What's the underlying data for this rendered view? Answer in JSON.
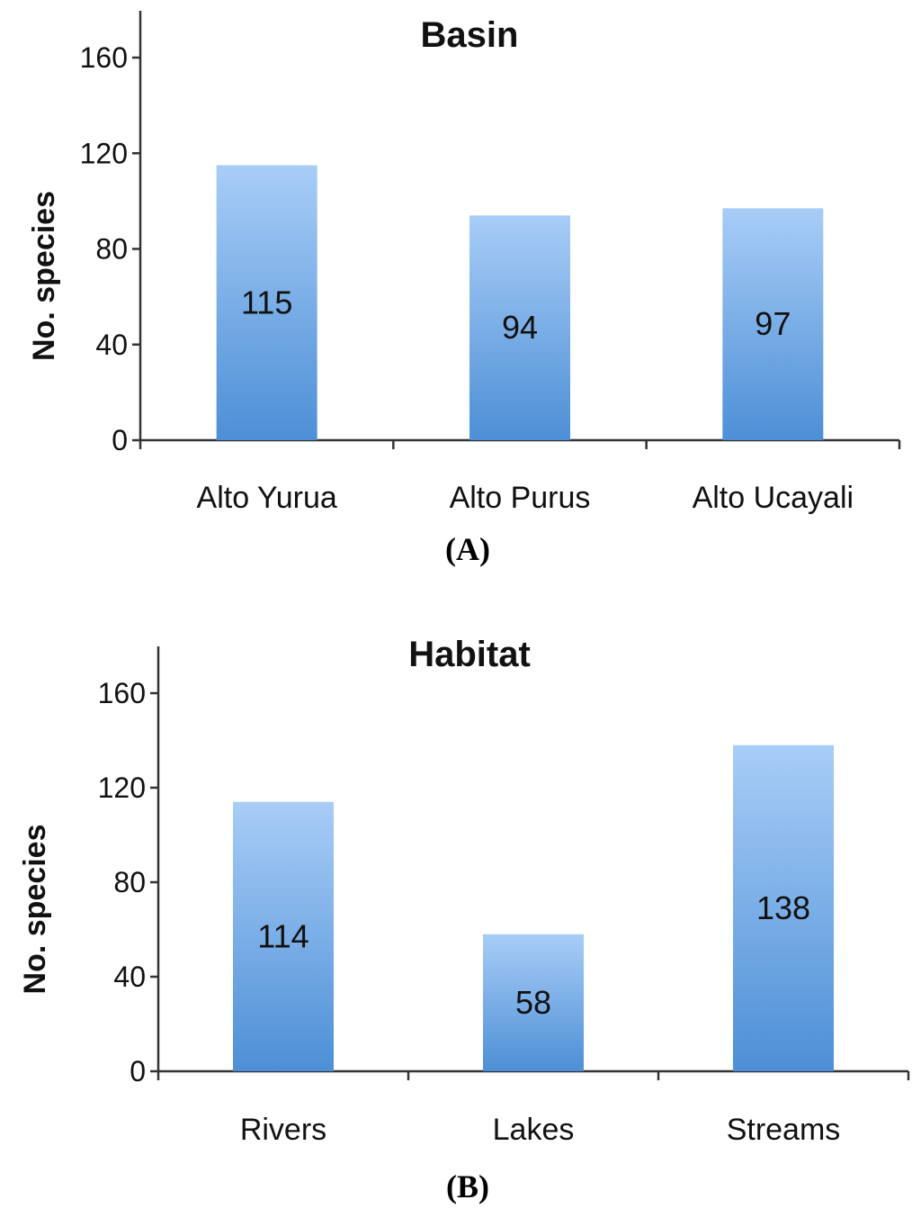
{
  "colors": {
    "bar_top": "#a8cdf7",
    "bar_bottom": "#4d8fd6",
    "axis": "#333333",
    "text": "#111111"
  },
  "chart_data": [
    {
      "type": "bar",
      "title": "Basin",
      "ylabel": "No. species",
      "xlabel": "",
      "categories": [
        "Alto Yurua",
        "Alto Purus",
        "Alto Ucayali"
      ],
      "values": [
        115,
        94,
        97
      ],
      "data_labels": [
        "115",
        "94",
        "97"
      ],
      "yticks": [
        "0",
        "40",
        "80",
        "120",
        "160"
      ],
      "ylim": [
        0,
        180
      ],
      "grid": false,
      "legend": "none",
      "caption": "(A)"
    },
    {
      "type": "bar",
      "title": "Habitat",
      "ylabel": "No. species",
      "xlabel": "",
      "categories": [
        "Rivers",
        "Lakes",
        "Streams"
      ],
      "values": [
        114,
        58,
        138
      ],
      "data_labels": [
        "114",
        "58",
        "138"
      ],
      "yticks": [
        "0",
        "40",
        "80",
        "120",
        "160"
      ],
      "ylim": [
        0,
        180
      ],
      "grid": false,
      "legend": "none",
      "caption": "(B)"
    }
  ]
}
